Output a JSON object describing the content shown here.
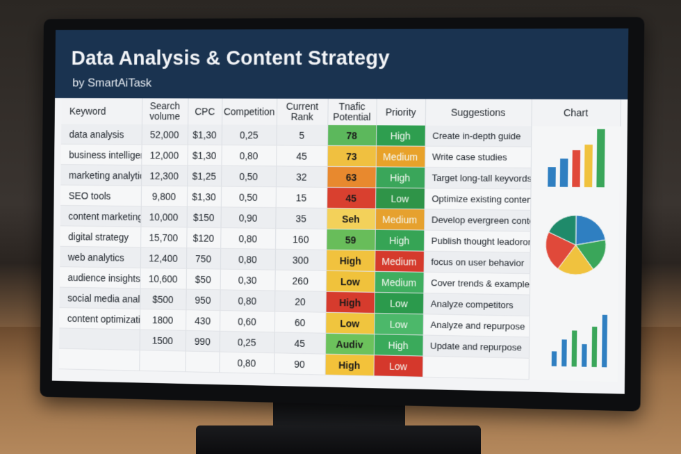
{
  "header": {
    "title": "Data Analysis & Content Strategy",
    "subtitle": "by SmartAiTask"
  },
  "columns": [
    "Keyword",
    "Search volume",
    "CPC",
    "Competition",
    "Current Rank",
    "Tnafic Potential",
    "Priority",
    "Suggestions",
    "Chart"
  ],
  "rows": [
    {
      "keyword": "data analysis",
      "volume": "52,000",
      "cpc": "$1,30",
      "competition": "0,25",
      "rank": "5",
      "traffic": "78",
      "traffic_color": "#5cb85c",
      "priority": "High",
      "priority_color": "#2e9e4f",
      "suggestion": "Create in-depth guide"
    },
    {
      "keyword": "business intelligence",
      "volume": "12,000",
      "cpc": "$1,30",
      "competition": "0,80",
      "rank": "45",
      "traffic": "73",
      "traffic_color": "#f0c040",
      "priority": "Medium",
      "priority_color": "#e8a22a",
      "suggestion": "Write case studies"
    },
    {
      "keyword": "marketing analytics",
      "volume": "12,300",
      "cpc": "$1,25",
      "competition": "0,50",
      "rank": "32",
      "traffic": "63",
      "traffic_color": "#e8892e",
      "priority": "High",
      "priority_color": "#3aa65a",
      "suggestion": "Target long-tall keyvords"
    },
    {
      "keyword": "SEO tools",
      "volume": "9,800",
      "cpc": "$1,30",
      "competition": "0,50",
      "rank": "15",
      "traffic": "45",
      "traffic_color": "#d9402f",
      "priority": "Low",
      "priority_color": "#2f9448",
      "suggestion": "Optimize existing content"
    },
    {
      "keyword": "content marketing",
      "volume": "10,000",
      "cpc": "$150",
      "competition": "0,90",
      "rank": "35",
      "traffic": "Seh",
      "traffic_color": "#f3d15a",
      "priority": "Medium",
      "priority_color": "#e6a12e",
      "suggestion": "Develop evergreen content"
    },
    {
      "keyword": "digital strategy",
      "volume": "15,700",
      "cpc": "$120",
      "competition": "0,80",
      "rank": "160",
      "traffic": "59",
      "traffic_color": "#68bd5a",
      "priority": "High",
      "priority_color": "#36a455",
      "suggestion": "Publish thought leadorom"
    },
    {
      "keyword": "web analytics",
      "volume": "12,400",
      "cpc": "750",
      "competition": "0,80",
      "rank": "300",
      "traffic": "High",
      "traffic_color": "#f1c23e",
      "priority": "Medium",
      "priority_color": "#d53a2c",
      "suggestion": "focus on user behavior"
    },
    {
      "keyword": "audience insights",
      "volume": "10,600",
      "cpc": "$50",
      "competition": "0,30",
      "rank": "260",
      "traffic": "Low",
      "traffic_color": "#f0c23c",
      "priority": "Medium",
      "priority_color": "#3fae5f",
      "suggestion": "Cover trends & examples"
    },
    {
      "keyword": "social media analytics",
      "volume": "$500",
      "cpc": "950",
      "competition": "0,80",
      "rank": "20",
      "traffic": "High",
      "traffic_color": "#d63b2d",
      "priority": "Low",
      "priority_color": "#2b9a4c",
      "suggestion": "Analyze competitors"
    },
    {
      "keyword": "content optimization",
      "volume": "1800",
      "cpc": "430",
      "competition": "0,60",
      "rank": "60",
      "traffic": "Low",
      "traffic_color": "#f0c53e",
      "priority": "Low",
      "priority_color": "#4cb86a",
      "suggestion": "Analyze and repurpose"
    },
    {
      "keyword": "",
      "volume": "1500",
      "cpc": "990",
      "competition": "0,25",
      "rank": "45",
      "traffic": "Audiv",
      "traffic_color": "#6cc25c",
      "priority": "High",
      "priority_color": "#3aaa5b",
      "suggestion": "Update and repurpose"
    },
    {
      "keyword": "",
      "volume": "",
      "cpc": "",
      "competition": "0,80",
      "rank": "90",
      "traffic": "High",
      "traffic_color": "#f3c23a",
      "priority": "Low",
      "priority_color": "#d5382c",
      "suggestion": ""
    }
  ],
  "mini_charts": {
    "bar_chart_1": {
      "values": [
        28,
        40,
        52,
        60,
        82
      ],
      "colors": [
        "#2f7fc1",
        "#2f7fc1",
        "#e0493a",
        "#f0c23e",
        "#3aa65a"
      ]
    },
    "pie_chart": {
      "values": [
        22,
        18,
        20,
        22,
        18
      ],
      "colors": [
        "#2f7fc1",
        "#3aa65a",
        "#f0c23e",
        "#e0493a",
        "#1f8a6a"
      ]
    },
    "bar_chart_2": {
      "values": [
        20,
        36,
        48,
        30,
        54,
        70
      ],
      "colors": [
        "#2f7fc1",
        "#2f7fc1",
        "#3aa65a",
        "#2f7fc1",
        "#3aa65a",
        "#2f7fc1"
      ]
    }
  }
}
